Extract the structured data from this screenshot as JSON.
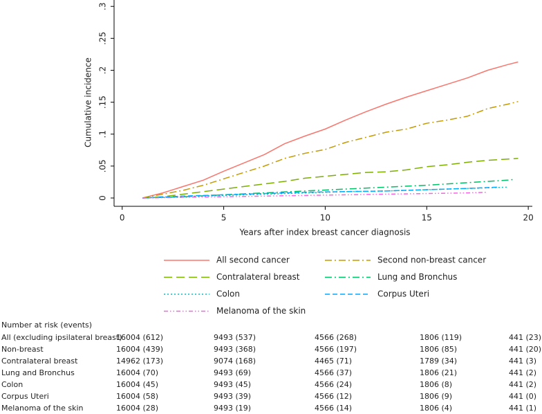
{
  "chart_data": {
    "type": "line",
    "x_label": "Years after index breast cancer diagnosis",
    "y_label": "Cumulative incidence",
    "xlim": [
      -0.4,
      20.2
    ],
    "ylim": [
      -0.013,
      0.31
    ],
    "xticks": [
      0,
      5,
      10,
      15,
      20
    ],
    "yticks": [
      0,
      {
        "value": 0.05,
        "label": ".05"
      },
      {
        "value": 0.1,
        "label": ".1"
      },
      {
        "value": 0.15,
        "label": ".15"
      },
      {
        "value": 0.2,
        "label": ".2"
      },
      {
        "value": 0.25,
        "label": ".25"
      },
      {
        "value": 0.3,
        "label": ".3"
      }
    ],
    "grid": false,
    "series": [
      {
        "name": "All second cancer",
        "color": "#f8766d",
        "linestyle": "solid",
        "x": [
          1,
          2,
          3,
          4,
          5,
          6,
          7,
          8,
          9,
          10,
          11,
          12,
          13,
          14,
          15,
          16,
          17,
          18,
          19,
          19.5
        ],
        "values": [
          0,
          0.008,
          0.018,
          0.028,
          0.042,
          0.055,
          0.068,
          0.085,
          0.097,
          0.108,
          0.122,
          0.135,
          0.147,
          0.158,
          0.168,
          0.178,
          0.188,
          0.2,
          0.209,
          0.213
        ]
      },
      {
        "name": "Second non-breast cancer",
        "color": "#c49a00",
        "linestyle": "dashdot",
        "x": [
          1,
          2,
          3,
          4,
          5,
          6,
          7,
          8,
          9,
          10,
          11,
          12,
          13,
          14,
          15,
          16,
          17,
          18,
          19,
          19.5
        ],
        "values": [
          0,
          0.006,
          0.012,
          0.02,
          0.03,
          0.04,
          0.05,
          0.062,
          0.07,
          0.076,
          0.087,
          0.095,
          0.103,
          0.108,
          0.117,
          0.122,
          0.128,
          0.14,
          0.147,
          0.151
        ]
      },
      {
        "name": "Contralateral breast",
        "color": "#7cae00",
        "linestyle": "longdash",
        "x": [
          1,
          2,
          3,
          4,
          5,
          6,
          7,
          8,
          9,
          10,
          11,
          12,
          13,
          14,
          15,
          16,
          17,
          18,
          19,
          19.5
        ],
        "values": [
          0,
          0.002,
          0.006,
          0.01,
          0.014,
          0.018,
          0.022,
          0.026,
          0.031,
          0.034,
          0.037,
          0.04,
          0.041,
          0.044,
          0.049,
          0.052,
          0.056,
          0.059,
          0.061,
          0.062
        ]
      },
      {
        "name": "Lung and Bronchus",
        "color": "#00be67",
        "linestyle": "dashdot",
        "x": [
          1,
          3,
          5,
          7,
          9,
          11,
          13,
          15,
          17,
          19,
          19.3
        ],
        "values": [
          0,
          0.002,
          0.005,
          0.008,
          0.011,
          0.014,
          0.017,
          0.02,
          0.024,
          0.028,
          0.029
        ]
      },
      {
        "name": "Colon",
        "color": "#00bfc4",
        "linestyle": "dot",
        "x": [
          1,
          3,
          5,
          7,
          9,
          11,
          13,
          15,
          17,
          19
        ],
        "values": [
          0,
          0.002,
          0.004,
          0.006,
          0.008,
          0.01,
          0.011,
          0.013,
          0.015,
          0.017
        ]
      },
      {
        "name": "Corpus Uteri",
        "color": "#00a9ff",
        "linestyle": "dash",
        "x": [
          1,
          3,
          5,
          7,
          9,
          11,
          13,
          15,
          17,
          18.5
        ],
        "values": [
          0,
          0.003,
          0.005,
          0.007,
          0.009,
          0.01,
          0.011,
          0.013,
          0.015,
          0.017
        ]
      },
      {
        "name": "Melanoma of the skin",
        "color": "#f564e3",
        "linestyle": "dashdotdot",
        "x": [
          1,
          3,
          5,
          7,
          9,
          11,
          13,
          15,
          17,
          18
        ],
        "values": [
          0,
          0.001,
          0.002,
          0.003,
          0.004,
          0.005,
          0.006,
          0.007,
          0.008,
          0.009
        ]
      }
    ]
  },
  "risk_table": {
    "title": "Number at risk (events)",
    "rows": [
      {
        "label": "All (excluding ipsilateral breast)",
        "cells": [
          "16004 (612)",
          "9493 (537)",
          "4566 (268)",
          "1806 (119)",
          "441 (23)"
        ]
      },
      {
        "label": "Non-breast",
        "cells": [
          "16004 (439)",
          "9493 (368)",
          "4566 (197)",
          "1806 (85)",
          "441 (20)"
        ]
      },
      {
        "label": "Contralateral breast",
        "cells": [
          "14962 (173)",
          "9074 (168)",
          "4465 (71)",
          "1789 (34)",
          "441 (3)"
        ]
      },
      {
        "label": "Lung and Bronchus",
        "cells": [
          "16004 (70)",
          "9493 (69)",
          "4566 (37)",
          "1806 (21)",
          "441 (2)"
        ]
      },
      {
        "label": "Colon",
        "cells": [
          "16004 (45)",
          "9493 (45)",
          "4566 (24)",
          "1806 (8)",
          "441 (2)"
        ]
      },
      {
        "label": "Corpus Uteri",
        "cells": [
          "16004 (58)",
          "9493 (39)",
          "4566 (12)",
          "1806 (9)",
          "441 (0)"
        ]
      },
      {
        "label": "Melanoma of the skin",
        "cells": [
          "16004 (28)",
          "9493 (19)",
          "4566 (14)",
          "1806 (4)",
          "441 (1)"
        ]
      }
    ]
  }
}
